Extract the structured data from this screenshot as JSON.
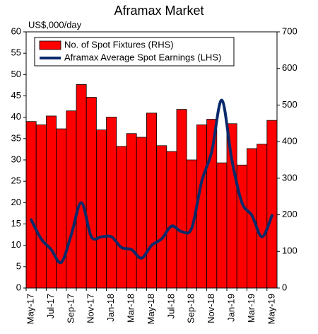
{
  "chart_data": {
    "type": "bar",
    "title": "Aframax Market",
    "y_label": "US$,000/day",
    "categories": [
      "May-17",
      null,
      "Jul-17",
      null,
      "Sep-17",
      null,
      "Nov-17",
      null,
      "Jan-18",
      null,
      "Mar-18",
      null,
      "May-18",
      null,
      "Jul-18",
      null,
      "Sep-18",
      null,
      "Nov-18",
      null,
      "Jan-19",
      null,
      "Mar-19",
      null,
      "May-19"
    ],
    "series": [
      {
        "name": "No. of Spot Fixtures (RHS)",
        "type": "bar",
        "axis": "y2",
        "color": "#ff0000",
        "values": [
          455,
          446,
          470,
          435,
          484,
          556,
          521,
          432,
          467,
          387,
          422,
          412,
          478,
          389,
          373,
          488,
          350,
          446,
          461,
          342,
          449,
          336,
          381,
          393,
          458
        ]
      },
      {
        "name": "Aframax Average Spot Earnings (LHS)",
        "type": "line",
        "color": "#0a2a6b",
        "values": [
          16,
          11.5,
          9,
          6,
          12.5,
          20,
          12,
          12,
          12,
          9.5,
          9,
          7,
          10,
          11.5,
          14.5,
          13.2,
          14,
          25,
          32,
          44,
          30,
          20,
          17,
          12,
          17
        ]
      }
    ],
    "ylim": [
      0,
      60
    ],
    "yticks": [
      0,
      5,
      10,
      15,
      20,
      25,
      30,
      35,
      40,
      45,
      50,
      55,
      60
    ],
    "y2lim": [
      0,
      700
    ],
    "y2ticks": [
      0,
      100,
      200,
      300,
      400,
      500,
      600,
      700
    ]
  }
}
